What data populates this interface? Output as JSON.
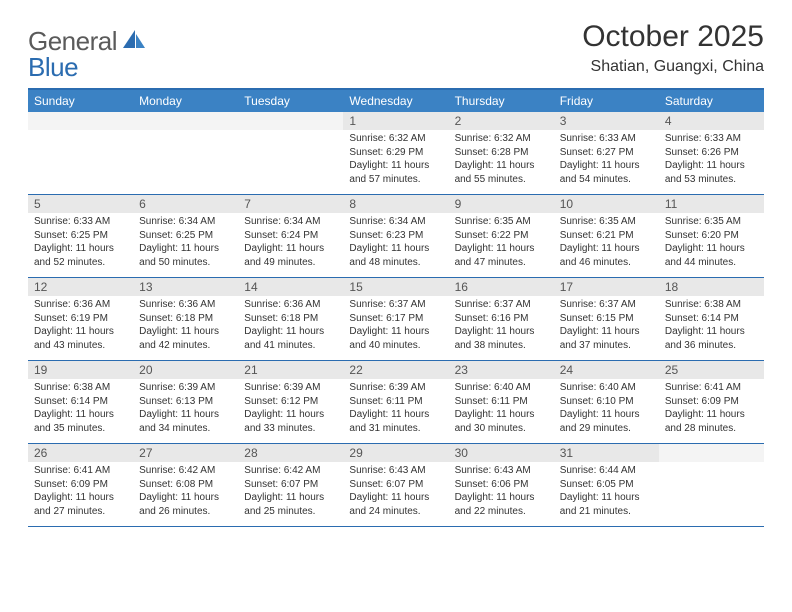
{
  "logo": {
    "word1": "General",
    "word2": "Blue"
  },
  "header": {
    "month_title": "October 2025",
    "location": "Shatian, Guangxi, China"
  },
  "colors": {
    "brand_blue": "#3b82c4",
    "border_blue": "#2b6cb0",
    "daynum_bg": "#e8e8e8",
    "text": "#333333",
    "logo_gray": "#5a5a5a"
  },
  "dow": [
    "Sunday",
    "Monday",
    "Tuesday",
    "Wednesday",
    "Thursday",
    "Friday",
    "Saturday"
  ],
  "weeks": [
    [
      {
        "n": "",
        "empty": true
      },
      {
        "n": "",
        "empty": true
      },
      {
        "n": "",
        "empty": true
      },
      {
        "n": "1",
        "sr": "6:32 AM",
        "ss": "6:29 PM",
        "dl": "11 hours and 57 minutes."
      },
      {
        "n": "2",
        "sr": "6:32 AM",
        "ss": "6:28 PM",
        "dl": "11 hours and 55 minutes."
      },
      {
        "n": "3",
        "sr": "6:33 AM",
        "ss": "6:27 PM",
        "dl": "11 hours and 54 minutes."
      },
      {
        "n": "4",
        "sr": "6:33 AM",
        "ss": "6:26 PM",
        "dl": "11 hours and 53 minutes."
      }
    ],
    [
      {
        "n": "5",
        "sr": "6:33 AM",
        "ss": "6:25 PM",
        "dl": "11 hours and 52 minutes."
      },
      {
        "n": "6",
        "sr": "6:34 AM",
        "ss": "6:25 PM",
        "dl": "11 hours and 50 minutes."
      },
      {
        "n": "7",
        "sr": "6:34 AM",
        "ss": "6:24 PM",
        "dl": "11 hours and 49 minutes."
      },
      {
        "n": "8",
        "sr": "6:34 AM",
        "ss": "6:23 PM",
        "dl": "11 hours and 48 minutes."
      },
      {
        "n": "9",
        "sr": "6:35 AM",
        "ss": "6:22 PM",
        "dl": "11 hours and 47 minutes."
      },
      {
        "n": "10",
        "sr": "6:35 AM",
        "ss": "6:21 PM",
        "dl": "11 hours and 46 minutes."
      },
      {
        "n": "11",
        "sr": "6:35 AM",
        "ss": "6:20 PM",
        "dl": "11 hours and 44 minutes."
      }
    ],
    [
      {
        "n": "12",
        "sr": "6:36 AM",
        "ss": "6:19 PM",
        "dl": "11 hours and 43 minutes."
      },
      {
        "n": "13",
        "sr": "6:36 AM",
        "ss": "6:18 PM",
        "dl": "11 hours and 42 minutes."
      },
      {
        "n": "14",
        "sr": "6:36 AM",
        "ss": "6:18 PM",
        "dl": "11 hours and 41 minutes."
      },
      {
        "n": "15",
        "sr": "6:37 AM",
        "ss": "6:17 PM",
        "dl": "11 hours and 40 minutes."
      },
      {
        "n": "16",
        "sr": "6:37 AM",
        "ss": "6:16 PM",
        "dl": "11 hours and 38 minutes."
      },
      {
        "n": "17",
        "sr": "6:37 AM",
        "ss": "6:15 PM",
        "dl": "11 hours and 37 minutes."
      },
      {
        "n": "18",
        "sr": "6:38 AM",
        "ss": "6:14 PM",
        "dl": "11 hours and 36 minutes."
      }
    ],
    [
      {
        "n": "19",
        "sr": "6:38 AM",
        "ss": "6:14 PM",
        "dl": "11 hours and 35 minutes."
      },
      {
        "n": "20",
        "sr": "6:39 AM",
        "ss": "6:13 PM",
        "dl": "11 hours and 34 minutes."
      },
      {
        "n": "21",
        "sr": "6:39 AM",
        "ss": "6:12 PM",
        "dl": "11 hours and 33 minutes."
      },
      {
        "n": "22",
        "sr": "6:39 AM",
        "ss": "6:11 PM",
        "dl": "11 hours and 31 minutes."
      },
      {
        "n": "23",
        "sr": "6:40 AM",
        "ss": "6:11 PM",
        "dl": "11 hours and 30 minutes."
      },
      {
        "n": "24",
        "sr": "6:40 AM",
        "ss": "6:10 PM",
        "dl": "11 hours and 29 minutes."
      },
      {
        "n": "25",
        "sr": "6:41 AM",
        "ss": "6:09 PM",
        "dl": "11 hours and 28 minutes."
      }
    ],
    [
      {
        "n": "26",
        "sr": "6:41 AM",
        "ss": "6:09 PM",
        "dl": "11 hours and 27 minutes."
      },
      {
        "n": "27",
        "sr": "6:42 AM",
        "ss": "6:08 PM",
        "dl": "11 hours and 26 minutes."
      },
      {
        "n": "28",
        "sr": "6:42 AM",
        "ss": "6:07 PM",
        "dl": "11 hours and 25 minutes."
      },
      {
        "n": "29",
        "sr": "6:43 AM",
        "ss": "6:07 PM",
        "dl": "11 hours and 24 minutes."
      },
      {
        "n": "30",
        "sr": "6:43 AM",
        "ss": "6:06 PM",
        "dl": "11 hours and 22 minutes."
      },
      {
        "n": "31",
        "sr": "6:44 AM",
        "ss": "6:05 PM",
        "dl": "11 hours and 21 minutes."
      },
      {
        "n": "",
        "empty": true
      }
    ]
  ],
  "labels": {
    "sunrise": "Sunrise:",
    "sunset": "Sunset:",
    "daylight": "Daylight:"
  }
}
